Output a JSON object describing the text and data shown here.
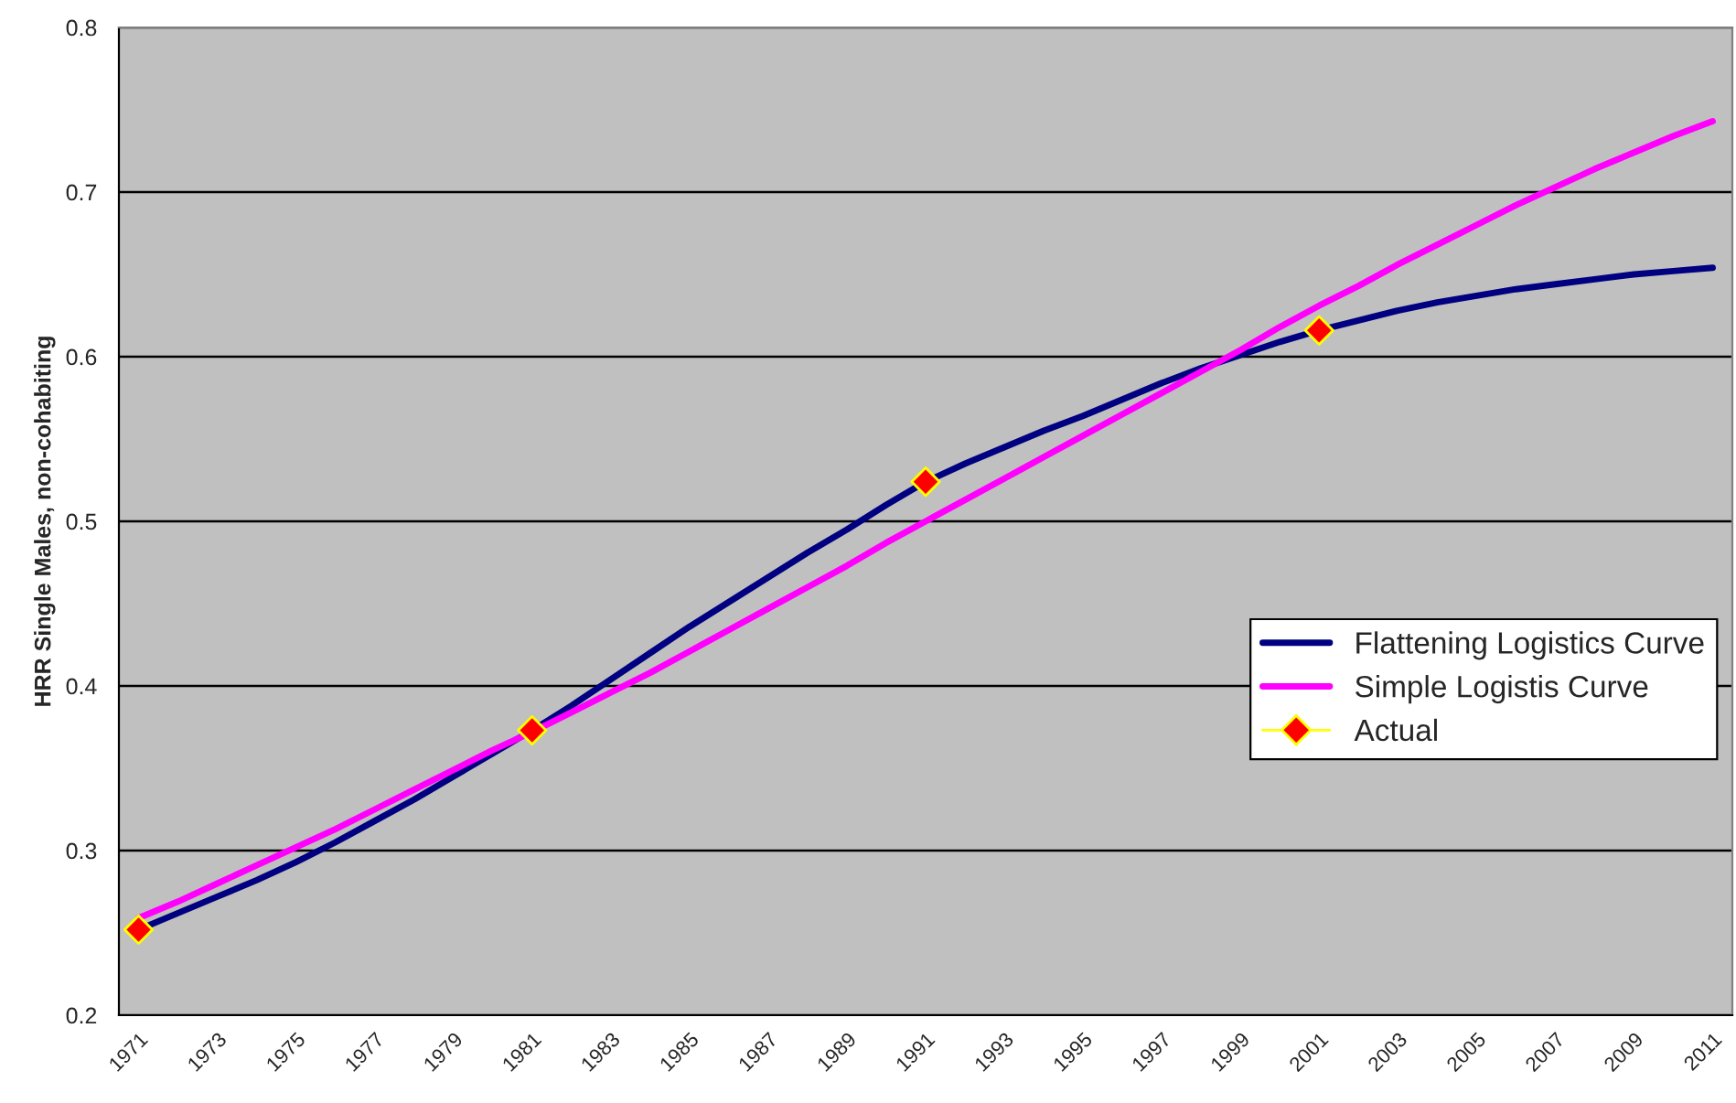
{
  "chart_data": {
    "type": "line",
    "ylabel": "HRR Single Males, non-cohabiting",
    "categories": [
      "1971",
      null,
      "1973",
      null,
      "1975",
      null,
      "1977",
      null,
      "1979",
      null,
      "1981",
      null,
      "1983",
      null,
      "1985",
      null,
      "1987",
      null,
      "1989",
      null,
      "1991",
      null,
      "1993",
      null,
      "1995",
      null,
      "1997",
      null,
      "1999",
      null,
      "2001",
      null,
      "2003",
      null,
      "2005",
      null,
      "2007",
      null,
      "2009",
      null,
      "2011"
    ],
    "series": [
      {
        "name": "Flattening Logistics Curve",
        "color": "#000080",
        "values": [
          0.252,
          0.262,
          0.272,
          0.282,
          0.293,
          0.305,
          0.318,
          0.331,
          0.345,
          0.359,
          0.373,
          0.388,
          0.404,
          0.42,
          0.436,
          0.451,
          0.466,
          0.481,
          0.495,
          0.51,
          0.524,
          0.535,
          0.545,
          0.555,
          0.564,
          0.574,
          0.584,
          0.593,
          0.601,
          0.609,
          0.616,
          0.622,
          0.628,
          0.633,
          0.637,
          0.641,
          0.644,
          0.647,
          0.65,
          0.652,
          0.654
        ]
      },
      {
        "name": "Simple Logistis Curve",
        "color": "#ff00ff",
        "values": [
          0.259,
          0.269,
          0.28,
          0.291,
          0.302,
          0.313,
          0.325,
          0.337,
          0.349,
          0.361,
          0.372,
          0.384,
          0.396,
          0.408,
          0.421,
          0.434,
          0.447,
          0.46,
          0.473,
          0.487,
          0.5,
          0.513,
          0.526,
          0.539,
          0.552,
          0.565,
          0.578,
          0.591,
          0.604,
          0.618,
          0.631,
          0.643,
          0.656,
          0.668,
          0.68,
          0.692,
          0.703,
          0.714,
          0.724,
          0.734,
          0.743
        ]
      },
      {
        "name": "Actual",
        "type": "scatter",
        "color": "#ff0000",
        "marker": "diamond",
        "values": [
          0.252,
          null,
          null,
          null,
          null,
          null,
          null,
          null,
          null,
          null,
          0.373,
          null,
          null,
          null,
          null,
          null,
          null,
          null,
          null,
          null,
          0.524,
          null,
          null,
          null,
          null,
          null,
          null,
          null,
          null,
          null,
          0.616,
          null,
          null,
          null,
          null,
          null,
          null,
          null,
          null,
          null,
          null
        ]
      }
    ],
    "ylim": [
      0.2,
      0.8
    ],
    "yticks": [
      0.2,
      0.3,
      0.4,
      0.5,
      0.6,
      0.7,
      0.8
    ],
    "grid": "y",
    "legend": "right"
  }
}
